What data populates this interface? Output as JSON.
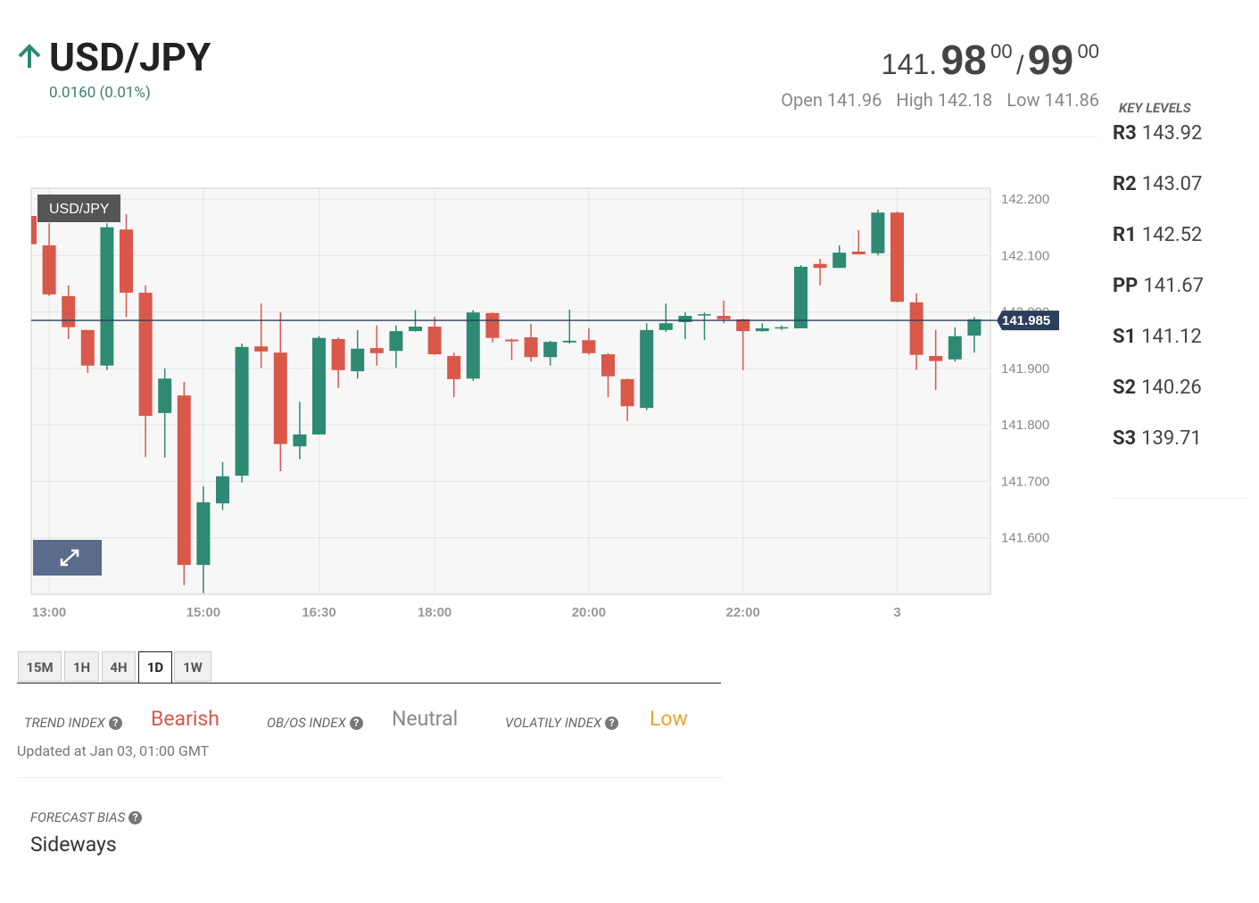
{
  "header": {
    "symbol": "USD/JPY",
    "change": "0.0160 (0.01%)"
  },
  "quote": {
    "bid_prefix": "141.",
    "bid_main": "98",
    "bid_pip": "00",
    "separator": "/",
    "ask_main": "99",
    "ask_pip": "00"
  },
  "session": [
    {
      "label": "Open",
      "value": "141.96"
    },
    {
      "label": "High",
      "value": "142.18"
    },
    {
      "label": "Low",
      "value": "141.86"
    }
  ],
  "key_levels": {
    "title": "KEY LEVELS",
    "levels": [
      {
        "name": "R3",
        "value": "143.92"
      },
      {
        "name": "R2",
        "value": "143.07"
      },
      {
        "name": "R1",
        "value": "142.52"
      },
      {
        "name": "PP",
        "value": "141.67"
      },
      {
        "name": "S1",
        "value": "141.12"
      },
      {
        "name": "S2",
        "value": "140.26"
      },
      {
        "name": "S3",
        "value": "139.71"
      }
    ]
  },
  "chart_data": {
    "type": "candlestick",
    "title": "USD/JPY",
    "up_color": "#2e8a72",
    "down_color": "#d9584a",
    "grid": true,
    "categories": [
      null,
      "13:00",
      null,
      null,
      null,
      null,
      null,
      null,
      null,
      "15:00",
      null,
      null,
      null,
      null,
      null,
      "16:30",
      null,
      null,
      null,
      null,
      null,
      "18:00",
      null,
      null,
      null,
      null,
      null,
      null,
      null,
      "20:00",
      null,
      null,
      null,
      null,
      null,
      null,
      null,
      "22:00",
      null,
      null,
      null,
      null,
      null,
      null,
      null,
      "3",
      null,
      null,
      null,
      null
    ],
    "open": [
      142.17,
      142.118,
      142.028,
      141.968,
      141.905,
      142.146,
      142.034,
      141.821,
      141.852,
      141.552,
      141.661,
      141.71,
      141.939,
      141.928,
      141.762,
      141.783,
      141.952,
      141.895,
      141.936,
      141.931,
      141.966,
      141.974,
      141.922,
      141.882,
      141.998,
      141.951,
      141.955,
      141.92,
      141.946,
      141.95,
      141.925,
      141.881,
      141.83,
      141.968,
      141.982,
      141.994,
      141.993,
      141.987,
      141.966,
      141.971,
      141.971,
      142.085,
      142.078,
      142.107,
      142.104,
      142.176,
      142.017,
      141.922,
      141.916,
      141.958
    ],
    "high": [
      142.21,
      142.157,
      142.047,
      141.968,
      142.157,
      142.173,
      142.047,
      141.9,
      141.876,
      141.691,
      141.734,
      141.944,
      142.015,
      141.999,
      141.841,
      141.957,
      141.955,
      141.968,
      141.976,
      141.976,
      142.003,
      141.991,
      141.928,
      142.003,
      141.999,
      141.953,
      141.979,
      141.949,
      142.004,
      141.971,
      141.927,
      141.882,
      141.98,
      142.015,
      141.999,
      141.999,
      142.02,
      141.988,
      141.98,
      141.976,
      142.083,
      142.094,
      142.118,
      142.145,
      142.181,
      142.178,
      142.033,
      141.968,
      141.973,
      141.991
    ],
    "low": [
      142.11,
      142.028,
      141.952,
      141.892,
      141.897,
      141.991,
      141.743,
      141.742,
      141.516,
      141.502,
      141.649,
      141.698,
      141.901,
      141.718,
      141.739,
      141.783,
      141.865,
      141.882,
      141.905,
      141.901,
      141.965,
      141.924,
      141.849,
      141.878,
      141.946,
      141.915,
      141.912,
      141.905,
      141.944,
      141.924,
      141.849,
      141.807,
      141.826,
      141.965,
      141.952,
      141.95,
      141.98,
      141.897,
      141.965,
      141.968,
      141.971,
      142.047,
      142.078,
      142.102,
      142.1,
      142.017,
      141.897,
      141.862,
      141.912,
      141.928
    ],
    "close": [
      142.12,
      142.031,
      141.973,
      141.905,
      142.15,
      142.034,
      141.816,
      141.882,
      141.552,
      141.663,
      141.709,
      141.938,
      141.93,
      141.766,
      141.783,
      141.954,
      141.897,
      141.935,
      141.927,
      141.966,
      141.974,
      141.925,
      141.881,
      141.999,
      141.954,
      141.948,
      141.92,
      141.947,
      141.949,
      141.927,
      141.886,
      141.833,
      141.968,
      141.98,
      141.993,
      141.996,
      141.987,
      141.966,
      141.971,
      141.973,
      142.08,
      142.078,
      142.105,
      142.102,
      142.176,
      142.018,
      141.924,
      141.913,
      141.957,
      141.987
    ],
    "ylim": [
      141.5,
      142.219
    ],
    "yticks": [
      {
        "value": 141.6,
        "label": "141.600"
      },
      {
        "value": 141.7,
        "label": "141.700"
      },
      {
        "value": 141.8,
        "label": "141.800"
      },
      {
        "value": 141.9,
        "label": "141.900"
      },
      {
        "value": 142.0,
        "label": "142.000"
      },
      {
        "value": 142.1,
        "label": "142.100"
      },
      {
        "value": 142.2,
        "label": "142.200"
      }
    ],
    "last_price": {
      "value": 141.985,
      "label": "141.985"
    }
  },
  "tabs": {
    "items": [
      "15M",
      "1H",
      "4H",
      "1D",
      "1W"
    ],
    "active": "1D"
  },
  "indices": [
    {
      "label": "TREND INDEX",
      "value": "Bearish",
      "color": "#d9584a"
    },
    {
      "label": "OB/OS INDEX",
      "value": "Neutral",
      "color": "#8a8a8a"
    },
    {
      "label": "VOLATILY INDEX",
      "value": "Low",
      "color": "#f0a030"
    }
  ],
  "updated": "Updated at Jan 03, 01:00 GMT",
  "forecast": {
    "label": "FORECAST BIAS",
    "value": "Sideways"
  }
}
